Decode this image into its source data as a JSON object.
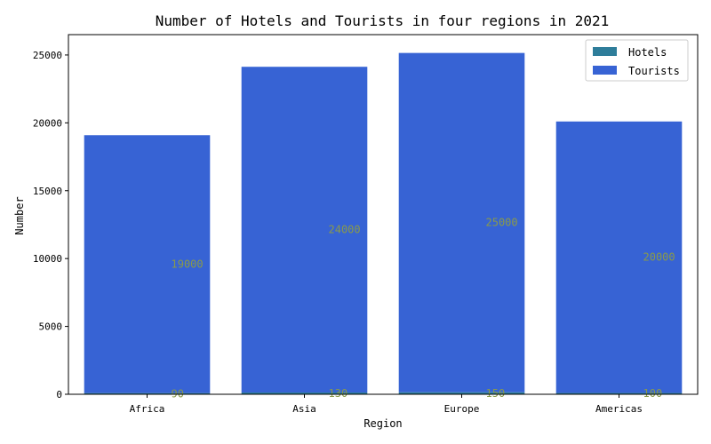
{
  "chart_data": {
    "type": "bar",
    "title": "Number of Hotels and Tourists in four regions in 2021",
    "xlabel": "Region",
    "ylabel": "Number",
    "categories": [
      "Africa",
      "Asia",
      "Europe",
      "Americas"
    ],
    "series": [
      {
        "name": "Hotels",
        "values": [
          90,
          130,
          150,
          100
        ],
        "color": "#2e7d9a"
      },
      {
        "name": "Tourists",
        "values": [
          19000,
          24000,
          25000,
          20000
        ],
        "color": "#3763d4"
      }
    ],
    "ylim": [
      0,
      26500
    ],
    "yticks": [
      0,
      5000,
      10000,
      15000,
      20000,
      25000
    ],
    "grid": false,
    "legend_position": "top-right",
    "stacked": true,
    "data_label_color": "#8a9a4a"
  }
}
